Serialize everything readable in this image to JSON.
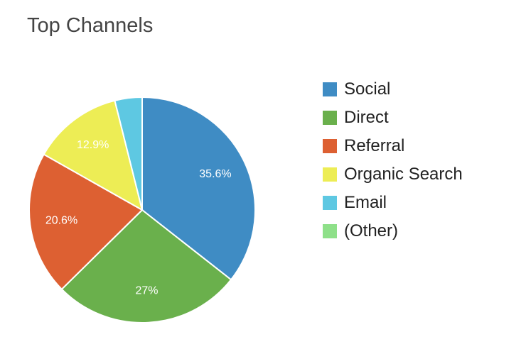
{
  "chart_data": {
    "type": "pie",
    "title": "Top Channels",
    "legend_position": "right",
    "slices": [
      {
        "name": "Social",
        "value": 35.6,
        "label": "35.6%",
        "color": "#3f8cc4"
      },
      {
        "name": "Direct",
        "value": 27.0,
        "label": "27%",
        "color": "#6ab04c"
      },
      {
        "name": "Referral",
        "value": 20.6,
        "label": "20.6%",
        "color": "#dd6032"
      },
      {
        "name": "Organic Search",
        "value": 12.9,
        "label": "12.9%",
        "color": "#eded55"
      },
      {
        "name": "Email",
        "value": 3.9,
        "label": "",
        "color": "#5ec8e2"
      },
      {
        "name": "(Other)",
        "value": 0.0,
        "label": "",
        "color": "#8ee089"
      }
    ]
  }
}
